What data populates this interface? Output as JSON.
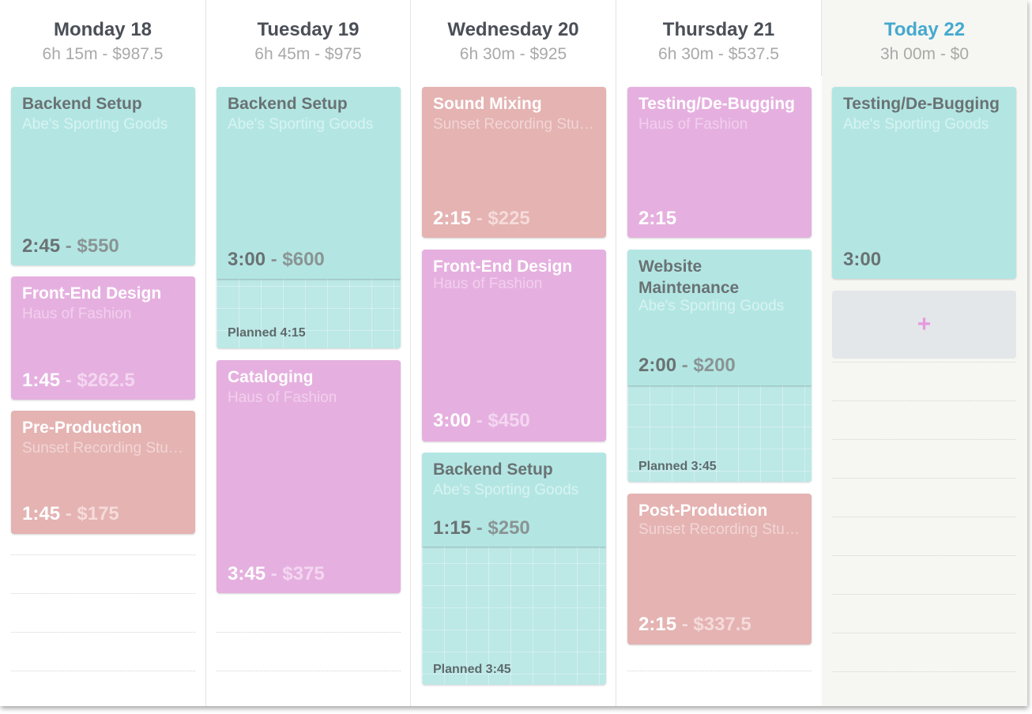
{
  "days": [
    {
      "title": "Monday 18",
      "summary": "6h 15m - $987.5",
      "entries": [
        {
          "task": "Backend Setup",
          "client": "Abe's Sporting Goods",
          "duration": "2:45",
          "amount": "$550",
          "color": "teal"
        },
        {
          "task": "Front-End Design",
          "client": "Haus of Fashion",
          "duration": "1:45",
          "amount": "$262.5",
          "color": "pink"
        },
        {
          "task": "Pre-Production",
          "client": "Sunset Recording Studio",
          "duration": "1:45",
          "amount": "$175",
          "color": "rose"
        }
      ]
    },
    {
      "title": "Tuesday 19",
      "summary": "6h 45m - $975",
      "entries": [
        {
          "task": "Backend Setup",
          "client": "Abe's Sporting Goods",
          "duration": "3:00",
          "amount": "$600",
          "color": "teal",
          "planned": "Planned 4:15"
        },
        {
          "task": "Cataloging",
          "client": "Haus of Fashion",
          "duration": "3:45",
          "amount": "$375",
          "color": "pink"
        }
      ]
    },
    {
      "title": "Wednesday 20",
      "summary": "6h 30m - $925",
      "entries": [
        {
          "task": "Sound Mixing",
          "client": "Sunset Recording Studio",
          "duration": "2:15",
          "amount": "$225",
          "color": "rose"
        },
        {
          "task": "Front-End Design",
          "client": "Haus of Fashion",
          "duration": "3:00",
          "amount": "$450",
          "color": "pink"
        },
        {
          "task": "Backend Setup",
          "client": "Abe's Sporting Goods",
          "duration": "1:15",
          "amount": "$250",
          "color": "teal",
          "planned": "Planned 3:45"
        }
      ]
    },
    {
      "title": "Thursday 21",
      "summary": "6h 30m - $537.5",
      "entries": [
        {
          "task": "Testing/De-Bugging",
          "client": "Haus of Fashion",
          "duration": "2:15",
          "color": "pink"
        },
        {
          "task": "Website Maintenance",
          "client": "Abe's Sporting Goods",
          "duration": "2:00",
          "amount": "$200",
          "color": "teal",
          "planned": "Planned 3:45"
        },
        {
          "task": "Post-Production",
          "client": "Sunset Recording Studio",
          "duration": "2:15",
          "amount": "$337.5",
          "color": "rose"
        }
      ]
    },
    {
      "title": "Today 22",
      "summary": "3h 00m - $0",
      "entries": [
        {
          "task": "Testing/De-Bugging",
          "client": "Abe's Sporting Goods",
          "duration": "3:00",
          "color": "teal"
        }
      ],
      "add_label": "+"
    }
  ],
  "amount_separator": " - "
}
